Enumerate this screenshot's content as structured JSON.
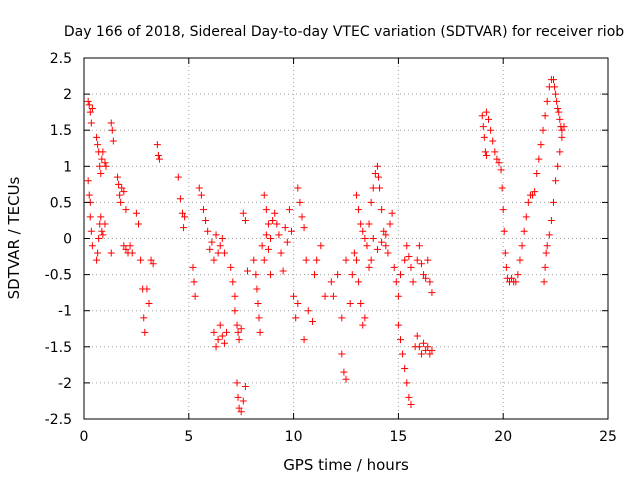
{
  "chart_data": {
    "type": "scatter",
    "title": "Day 166 of 2018, Sidereal Day-to-day VTEC variation (SDTVAR) for receiver riob",
    "xlabel": "GPS time / hours",
    "ylabel": "SDTVAR / TECUs",
    "xlim": [
      0,
      25
    ],
    "ylim": [
      -2.5,
      2.5
    ],
    "xticks": [
      0,
      5,
      10,
      15,
      20,
      25
    ],
    "yticks": [
      -2.5,
      -2,
      -1.5,
      -1,
      -0.5,
      0,
      0.5,
      1,
      1.5,
      2,
      2.5
    ],
    "grid": true,
    "marker": "+",
    "series": [
      {
        "name": "SDTVAR",
        "color": "#ff0000",
        "points": [
          [
            0.2,
            1.9
          ],
          [
            0.25,
            1.85
          ],
          [
            0.3,
            1.75
          ],
          [
            0.35,
            1.6
          ],
          [
            0.4,
            1.8
          ],
          [
            0.2,
            0.8
          ],
          [
            0.25,
            0.6
          ],
          [
            0.3,
            0.3
          ],
          [
            0.35,
            0.1
          ],
          [
            0.4,
            -0.1
          ],
          [
            0.3,
            0.5
          ],
          [
            0.6,
            1.4
          ],
          [
            0.65,
            1.3
          ],
          [
            0.7,
            1.2
          ],
          [
            0.75,
            1.0
          ],
          [
            0.8,
            0.9
          ],
          [
            0.85,
            1.1
          ],
          [
            0.9,
            1.2
          ],
          [
            1.0,
            1.05
          ],
          [
            1.05,
            1.0
          ],
          [
            0.6,
            -0.3
          ],
          [
            0.65,
            -0.2
          ],
          [
            0.7,
            0.0
          ],
          [
            0.75,
            0.2
          ],
          [
            0.8,
            0.3
          ],
          [
            0.85,
            0.1
          ],
          [
            0.9,
            0.05
          ],
          [
            1.0,
            0.2
          ],
          [
            1.3,
            1.6
          ],
          [
            1.35,
            1.5
          ],
          [
            1.4,
            1.35
          ],
          [
            1.3,
            -0.2
          ],
          [
            1.6,
            0.85
          ],
          [
            1.65,
            0.75
          ],
          [
            1.7,
            0.6
          ],
          [
            1.75,
            0.5
          ],
          [
            1.8,
            0.7
          ],
          [
            1.9,
            0.65
          ],
          [
            2.0,
            0.4
          ],
          [
            1.9,
            -0.1
          ],
          [
            2.0,
            -0.15
          ],
          [
            2.1,
            -0.2
          ],
          [
            2.2,
            -0.1
          ],
          [
            2.3,
            -0.2
          ],
          [
            2.5,
            0.35
          ],
          [
            2.6,
            0.2
          ],
          [
            2.7,
            -0.3
          ],
          [
            2.8,
            -0.7
          ],
          [
            2.85,
            -1.1
          ],
          [
            2.9,
            -1.3
          ],
          [
            3.0,
            -0.7
          ],
          [
            3.1,
            -0.9
          ],
          [
            3.2,
            -0.3
          ],
          [
            3.3,
            -0.35
          ],
          [
            3.5,
            1.3
          ],
          [
            3.55,
            1.15
          ],
          [
            3.6,
            1.1
          ],
          [
            4.5,
            0.85
          ],
          [
            4.6,
            0.55
          ],
          [
            4.7,
            0.35
          ],
          [
            4.75,
            0.15
          ],
          [
            4.8,
            0.3
          ],
          [
            5.2,
            -0.4
          ],
          [
            5.25,
            -0.6
          ],
          [
            5.3,
            -0.8
          ],
          [
            5.5,
            0.7
          ],
          [
            5.6,
            0.6
          ],
          [
            5.7,
            0.4
          ],
          [
            5.8,
            0.25
          ],
          [
            5.9,
            0.1
          ],
          [
            6.0,
            -0.15
          ],
          [
            6.1,
            -0.05
          ],
          [
            6.2,
            -0.3
          ],
          [
            6.3,
            0.05
          ],
          [
            6.4,
            -0.2
          ],
          [
            6.5,
            -0.1
          ],
          [
            6.6,
            0.0
          ],
          [
            6.7,
            -0.2
          ],
          [
            6.2,
            -1.3
          ],
          [
            6.3,
            -1.5
          ],
          [
            6.4,
            -1.4
          ],
          [
            6.5,
            -1.2
          ],
          [
            6.6,
            -1.35
          ],
          [
            6.7,
            -1.45
          ],
          [
            6.8,
            -1.3
          ],
          [
            7.0,
            -0.4
          ],
          [
            7.1,
            -0.6
          ],
          [
            7.2,
            -0.8
          ],
          [
            7.2,
            -1.0
          ],
          [
            7.3,
            -1.2
          ],
          [
            7.35,
            -1.3
          ],
          [
            7.4,
            -1.4
          ],
          [
            7.5,
            -1.25
          ],
          [
            7.3,
            -2.0
          ],
          [
            7.35,
            -2.2
          ],
          [
            7.4,
            -2.35
          ],
          [
            7.5,
            -2.4
          ],
          [
            7.6,
            -2.25
          ],
          [
            7.7,
            -2.05
          ],
          [
            7.6,
            0.35
          ],
          [
            7.7,
            0.25
          ],
          [
            7.8,
            -0.45
          ],
          [
            8.1,
            -0.3
          ],
          [
            8.2,
            -0.5
          ],
          [
            8.25,
            -0.7
          ],
          [
            8.3,
            -0.9
          ],
          [
            8.35,
            -1.1
          ],
          [
            8.4,
            -1.3
          ],
          [
            8.5,
            -0.1
          ],
          [
            8.6,
            -0.3
          ],
          [
            8.7,
            0.05
          ],
          [
            8.8,
            -0.15
          ],
          [
            8.9,
            -0.5
          ],
          [
            8.6,
            0.6
          ],
          [
            8.7,
            0.4
          ],
          [
            8.8,
            0.2
          ],
          [
            8.9,
            0.0
          ],
          [
            9.0,
            0.25
          ],
          [
            9.1,
            0.35
          ],
          [
            9.2,
            0.2
          ],
          [
            9.3,
            0.05
          ],
          [
            9.4,
            -0.2
          ],
          [
            9.5,
            -0.45
          ],
          [
            9.6,
            0.15
          ],
          [
            9.7,
            -0.05
          ],
          [
            9.8,
            0.4
          ],
          [
            9.9,
            0.1
          ],
          [
            10.2,
            0.7
          ],
          [
            10.3,
            0.5
          ],
          [
            10.4,
            0.3
          ],
          [
            10.5,
            0.15
          ],
          [
            10.6,
            -0.3
          ],
          [
            10.0,
            -0.8
          ],
          [
            10.1,
            -1.1
          ],
          [
            10.2,
            -0.9
          ],
          [
            10.5,
            -1.4
          ],
          [
            10.7,
            -1.0
          ],
          [
            10.9,
            -1.15
          ],
          [
            11.0,
            -0.5
          ],
          [
            11.1,
            -0.3
          ],
          [
            11.3,
            -0.1
          ],
          [
            11.5,
            -0.8
          ],
          [
            11.8,
            -0.6
          ],
          [
            11.9,
            -0.8
          ],
          [
            12.1,
            -0.5
          ],
          [
            12.3,
            -1.1
          ],
          [
            12.5,
            -0.3
          ],
          [
            12.7,
            -0.9
          ],
          [
            12.3,
            -1.6
          ],
          [
            12.4,
            -1.85
          ],
          [
            12.5,
            -1.95
          ],
          [
            12.8,
            -0.5
          ],
          [
            12.9,
            -0.2
          ],
          [
            13.0,
            -0.3
          ],
          [
            13.1,
            -0.6
          ],
          [
            13.2,
            -0.9
          ],
          [
            13.3,
            -1.2
          ],
          [
            13.4,
            -1.1
          ],
          [
            13.0,
            0.6
          ],
          [
            13.1,
            0.4
          ],
          [
            13.2,
            0.2
          ],
          [
            13.3,
            0.1
          ],
          [
            13.4,
            0.0
          ],
          [
            13.5,
            -0.1
          ],
          [
            13.6,
            0.2
          ],
          [
            13.7,
            0.5
          ],
          [
            13.8,
            0.7
          ],
          [
            13.9,
            0.9
          ],
          [
            14.0,
            1.0
          ],
          [
            14.05,
            0.85
          ],
          [
            14.1,
            0.7
          ],
          [
            14.2,
            0.4
          ],
          [
            14.3,
            0.1
          ],
          [
            14.4,
            -0.1
          ],
          [
            14.5,
            -0.2
          ],
          [
            14.6,
            0.2
          ],
          [
            14.7,
            0.35
          ],
          [
            13.6,
            -0.4
          ],
          [
            13.7,
            -0.3
          ],
          [
            13.8,
            0.0
          ],
          [
            14.0,
            -0.15
          ],
          [
            14.2,
            -0.05
          ],
          [
            14.4,
            0.05
          ],
          [
            14.8,
            -0.4
          ],
          [
            14.9,
            -0.6
          ],
          [
            15.0,
            -0.8
          ],
          [
            15.1,
            -0.5
          ],
          [
            15.0,
            -1.2
          ],
          [
            15.1,
            -1.4
          ],
          [
            15.2,
            -1.6
          ],
          [
            15.3,
            -1.8
          ],
          [
            15.4,
            -2.0
          ],
          [
            15.5,
            -2.2
          ],
          [
            15.6,
            -2.3
          ],
          [
            15.3,
            -0.3
          ],
          [
            15.4,
            -0.1
          ],
          [
            15.5,
            -0.25
          ],
          [
            15.6,
            -0.4
          ],
          [
            15.7,
            -0.6
          ],
          [
            15.8,
            -1.5
          ],
          [
            15.9,
            -1.35
          ],
          [
            16.0,
            -1.5
          ],
          [
            16.1,
            -1.6
          ],
          [
            16.2,
            -1.45
          ],
          [
            16.3,
            -1.55
          ],
          [
            16.4,
            -1.5
          ],
          [
            16.5,
            -1.6
          ],
          [
            16.6,
            -1.55
          ],
          [
            15.9,
            -0.3
          ],
          [
            16.0,
            -0.1
          ],
          [
            16.1,
            -0.35
          ],
          [
            16.2,
            -0.5
          ],
          [
            16.3,
            -0.55
          ],
          [
            16.4,
            -0.3
          ],
          [
            16.5,
            -0.6
          ],
          [
            16.6,
            -0.75
          ],
          [
            19.0,
            1.7
          ],
          [
            19.05,
            1.55
          ],
          [
            19.1,
            1.4
          ],
          [
            19.15,
            1.2
          ],
          [
            19.2,
            1.15
          ],
          [
            19.2,
            1.75
          ],
          [
            19.3,
            1.65
          ],
          [
            19.4,
            1.5
          ],
          [
            19.5,
            1.35
          ],
          [
            19.6,
            1.2
          ],
          [
            19.7,
            1.1
          ],
          [
            19.8,
            1.05
          ],
          [
            19.9,
            0.95
          ],
          [
            19.95,
            0.7
          ],
          [
            20.0,
            0.4
          ],
          [
            20.05,
            0.1
          ],
          [
            20.1,
            -0.2
          ],
          [
            20.15,
            -0.4
          ],
          [
            20.2,
            -0.55
          ],
          [
            20.3,
            -0.6
          ],
          [
            20.4,
            -0.55
          ],
          [
            20.5,
            -0.6
          ],
          [
            20.6,
            -0.6
          ],
          [
            20.7,
            -0.5
          ],
          [
            20.8,
            -0.3
          ],
          [
            20.9,
            -0.1
          ],
          [
            21.0,
            0.1
          ],
          [
            21.1,
            0.3
          ],
          [
            21.2,
            0.5
          ],
          [
            21.3,
            0.6
          ],
          [
            21.4,
            0.6
          ],
          [
            21.5,
            0.65
          ],
          [
            21.6,
            0.9
          ],
          [
            21.7,
            1.1
          ],
          [
            21.8,
            1.3
          ],
          [
            21.9,
            1.5
          ],
          [
            22.0,
            1.7
          ],
          [
            22.1,
            1.9
          ],
          [
            22.2,
            2.1
          ],
          [
            22.3,
            2.2
          ],
          [
            22.4,
            2.2
          ],
          [
            22.45,
            2.1
          ],
          [
            22.5,
            2.0
          ],
          [
            22.55,
            1.9
          ],
          [
            22.6,
            1.8
          ],
          [
            22.65,
            1.75
          ],
          [
            22.7,
            1.65
          ],
          [
            22.75,
            1.55
          ],
          [
            22.8,
            1.5
          ],
          [
            21.95,
            -0.6
          ],
          [
            22.0,
            -0.4
          ],
          [
            22.05,
            -0.2
          ],
          [
            22.1,
            -0.1
          ],
          [
            22.2,
            0.05
          ],
          [
            22.3,
            0.25
          ],
          [
            22.4,
            0.5
          ],
          [
            22.5,
            0.8
          ],
          [
            22.6,
            1.0
          ],
          [
            22.7,
            1.2
          ],
          [
            22.8,
            1.4
          ],
          [
            22.9,
            1.55
          ]
        ]
      }
    ]
  }
}
